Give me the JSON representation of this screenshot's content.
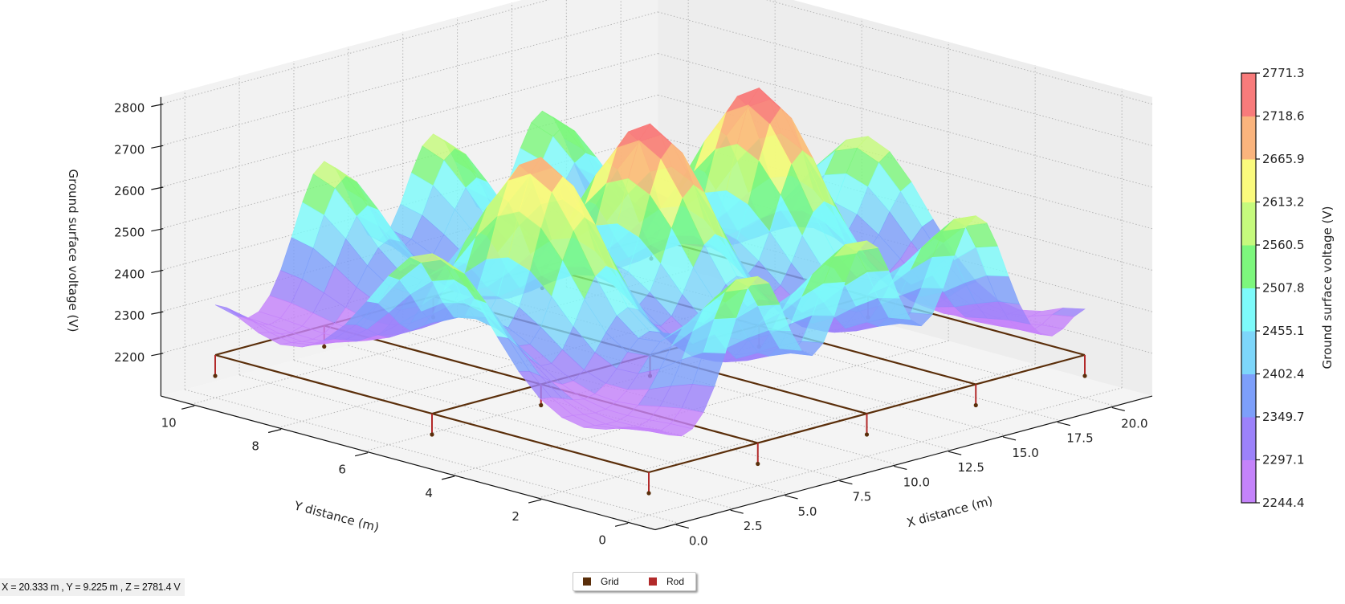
{
  "status_bar": {
    "readout": "X = 20.333 m , Y = 9.225 m , Z = 2781.4 V"
  },
  "legend": {
    "items": [
      {
        "label": "Grid",
        "color": "#5a2e0a"
      },
      {
        "label": "Rod",
        "color": "#b22a2a"
      }
    ]
  },
  "chart_data": {
    "type": "surface3d",
    "title": "",
    "x_axis": {
      "label": "X distance (m)",
      "ticks": [
        0,
        2.5,
        5,
        7.5,
        10,
        12.5,
        15,
        17.5,
        20
      ],
      "tick_labels": [
        "0.0",
        "2.5",
        "5.0",
        "7.5",
        "10.0",
        "12.5",
        "15.0",
        "17.5",
        "20.0"
      ]
    },
    "y_axis": {
      "label": "Y distance (m)",
      "ticks": [
        0,
        2,
        4,
        6,
        8,
        10
      ],
      "tick_labels": [
        "0",
        "2",
        "4",
        "6",
        "8",
        "10"
      ]
    },
    "z_axis": {
      "label": "Ground surface voltage (V)",
      "ticks": [
        2200,
        2300,
        2400,
        2500,
        2600,
        2700,
        2800
      ],
      "tick_labels": [
        "2200",
        "2300",
        "2400",
        "2500",
        "2600",
        "2700",
        "2800"
      ]
    },
    "grid": true,
    "colorbar": {
      "label": "Ground surface voltage (V)",
      "min": 2244.4,
      "max": 2771.3,
      "tick_labels": [
        "2771.3",
        "2718.6",
        "2665.9",
        "2613.2",
        "2560.5",
        "2507.8",
        "2455.1",
        "2402.4",
        "2349.7",
        "2297.1",
        "2244.4"
      ],
      "band_colors_low_to_high": [
        "#c483fa",
        "#9c82fa",
        "#7d9ffa",
        "#7dd6fa",
        "#7dfafa",
        "#7df77d",
        "#c6fa7d",
        "#fafa7d",
        "#fab47d",
        "#f87b7b"
      ]
    },
    "surface": {
      "x_range": [
        0,
        20
      ],
      "y_range": [
        0,
        10
      ],
      "peaks": [
        {
          "x": 5,
          "y": 5,
          "z": 2745
        },
        {
          "x": 10,
          "y": 5,
          "z": 2755
        },
        {
          "x": 15,
          "y": 5,
          "z": 2771
        },
        {
          "x": 0,
          "y": 5,
          "z": 2585
        },
        {
          "x": 20,
          "y": 5,
          "z": 2585
        },
        {
          "x": 5,
          "y": 0,
          "z": 2600
        },
        {
          "x": 10,
          "y": 0,
          "z": 2615
        },
        {
          "x": 15,
          "y": 0,
          "z": 2605
        },
        {
          "x": 5,
          "y": 10,
          "z": 2595
        },
        {
          "x": 10,
          "y": 10,
          "z": 2590
        },
        {
          "x": 15,
          "y": 10,
          "z": 2575
        }
      ],
      "corners": [
        {
          "x": 0,
          "y": 0,
          "z": 2305
        },
        {
          "x": 20,
          "y": 0,
          "z": 2310
        },
        {
          "x": 0,
          "y": 10,
          "z": 2320
        },
        {
          "x": 20,
          "y": 10,
          "z": 2315
        }
      ],
      "minimum": 2244.4
    },
    "ground_grid": {
      "conductor_x": [
        0,
        5,
        10,
        15,
        20
      ],
      "conductor_y": [
        0,
        5,
        10
      ],
      "rods": "at every conductor intersection",
      "depth_level_v": 2200
    },
    "legend_position": "bottom-center"
  }
}
